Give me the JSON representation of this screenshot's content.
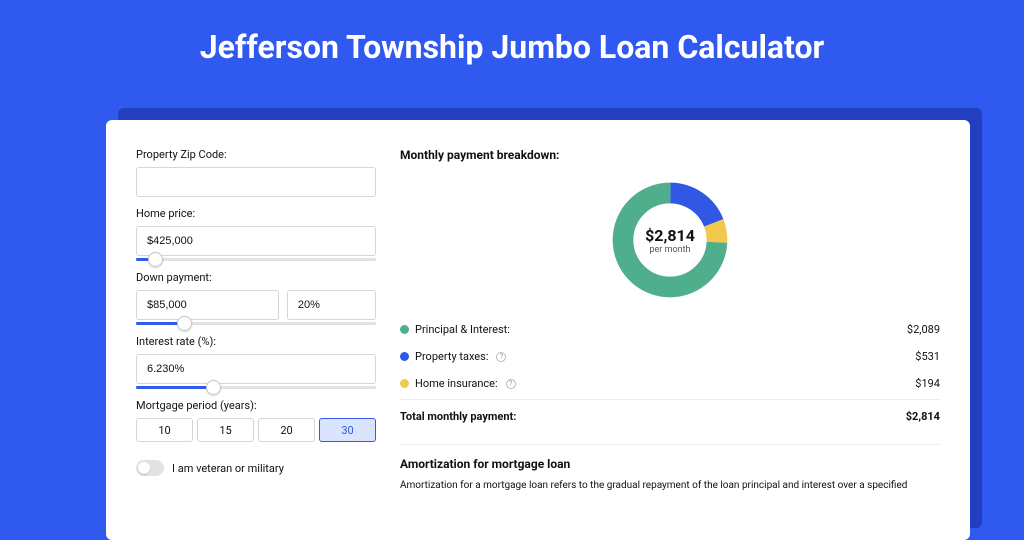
{
  "page": {
    "title": "Jefferson Township Jumbo Loan Calculator",
    "bg_color": "#2f59ef",
    "shadow_color": "#213fbe"
  },
  "form": {
    "zip_label": "Property Zip Code:",
    "zip_value": "",
    "home_price_label": "Home price:",
    "home_price_value": "$425,000",
    "home_price_slider_pct": 8,
    "down_payment_label": "Down payment:",
    "down_payment_value": "$85,000",
    "down_payment_pct": "20%",
    "down_payment_slider_pct": 20,
    "interest_label": "Interest rate (%):",
    "interest_value": "6.230%",
    "interest_slider_pct": 32,
    "period_label": "Mortgage period (years):",
    "period_options": [
      "10",
      "15",
      "20",
      "30"
    ],
    "period_selected": "30",
    "veteran_label": "I am veteran or military",
    "veteran_on": false
  },
  "breakdown": {
    "title": "Monthly payment breakdown:",
    "donut": {
      "total": "$2,814",
      "sub": "per month",
      "slices": [
        {
          "key": "principal_interest",
          "label": "Principal & Interest:",
          "value": "$2,089",
          "pct": 74.2,
          "color": "#4fae8c",
          "info": false
        },
        {
          "key": "property_taxes",
          "label": "Property taxes:",
          "value": "$531",
          "pct": 18.9,
          "color": "#3157e5",
          "info": true
        },
        {
          "key": "home_insurance",
          "label": "Home insurance:",
          "value": "$194",
          "pct": 6.9,
          "color": "#f0c94d",
          "info": true
        }
      ]
    },
    "total_label": "Total monthly payment:",
    "total_value": "$2,814"
  },
  "amort": {
    "title": "Amortization for mortgage loan",
    "text": "Amortization for a mortgage loan refers to the gradual repayment of the loan principal and interest over a specified"
  },
  "style": {
    "accent": "#2f59ef",
    "input_border": "#d6d6d6",
    "text": "#111111"
  }
}
